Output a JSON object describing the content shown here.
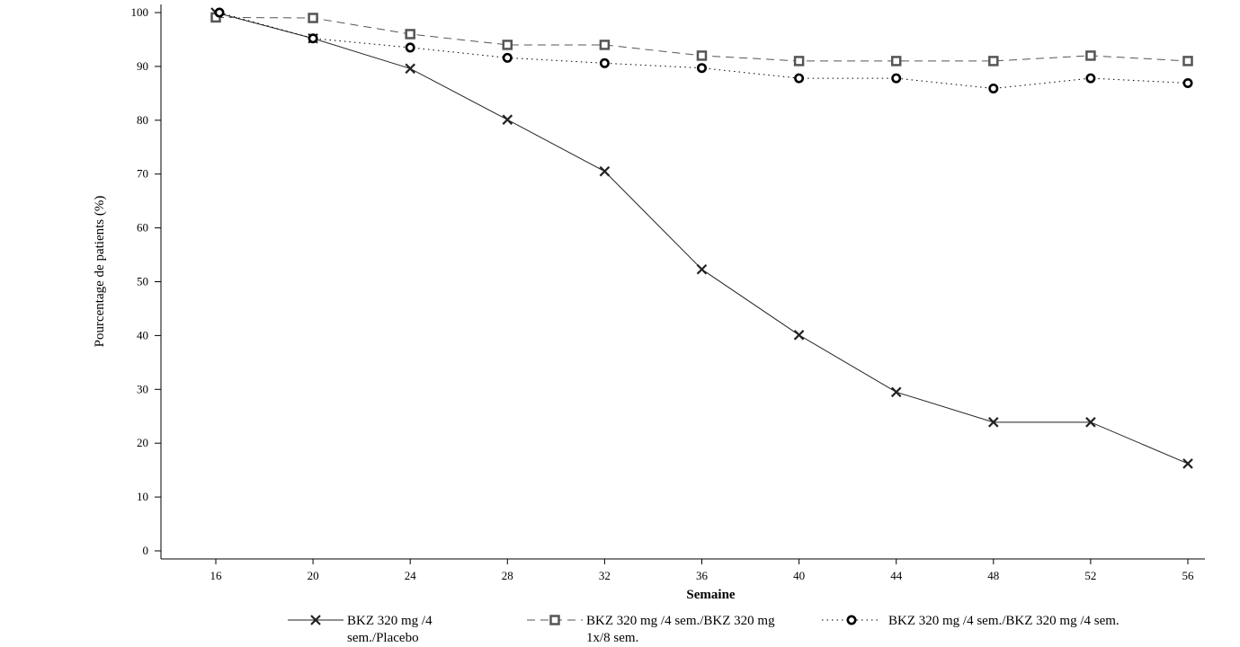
{
  "chart_data": {
    "type": "line",
    "xlabel": "Semaine",
    "ylabel": "Pourcentage de patients (%)",
    "x": [
      16,
      20,
      24,
      28,
      32,
      36,
      40,
      44,
      48,
      52,
      56
    ],
    "ylim": [
      0,
      100
    ],
    "yticks": [
      0,
      10,
      20,
      30,
      40,
      50,
      60,
      70,
      80,
      90,
      100
    ],
    "grid": false,
    "legend_position": "bottom",
    "series": [
      {
        "name_lines": [
          "BKZ 320 mg /4",
          "sem./Placebo"
        ],
        "values": [
          100,
          95.2,
          89.6,
          80.1,
          70.5,
          52.3,
          40.1,
          29.5,
          23.9,
          23.9,
          16.2
        ],
        "line_style": "solid",
        "marker": "x",
        "color": "#222222"
      },
      {
        "name_lines": [
          "BKZ 320 mg /4 sem./BKZ 320 mg",
          "1x/8 sem."
        ],
        "values": [
          99.1,
          99.0,
          96.0,
          94.0,
          94.0,
          92.0,
          91.0,
          91.0,
          91.0,
          92.0,
          91.0
        ],
        "line_style": "dashed",
        "marker": "square",
        "color": "#555555"
      },
      {
        "name_lines": [
          "BKZ 320 mg /4 sem./BKZ 320 mg /4 sem."
        ],
        "values": [
          100,
          95.2,
          93.5,
          91.6,
          90.6,
          89.7,
          87.8,
          87.8,
          85.9,
          87.8,
          86.9
        ],
        "line_style": "dotted",
        "marker": "circle",
        "color": "#000000"
      }
    ]
  }
}
